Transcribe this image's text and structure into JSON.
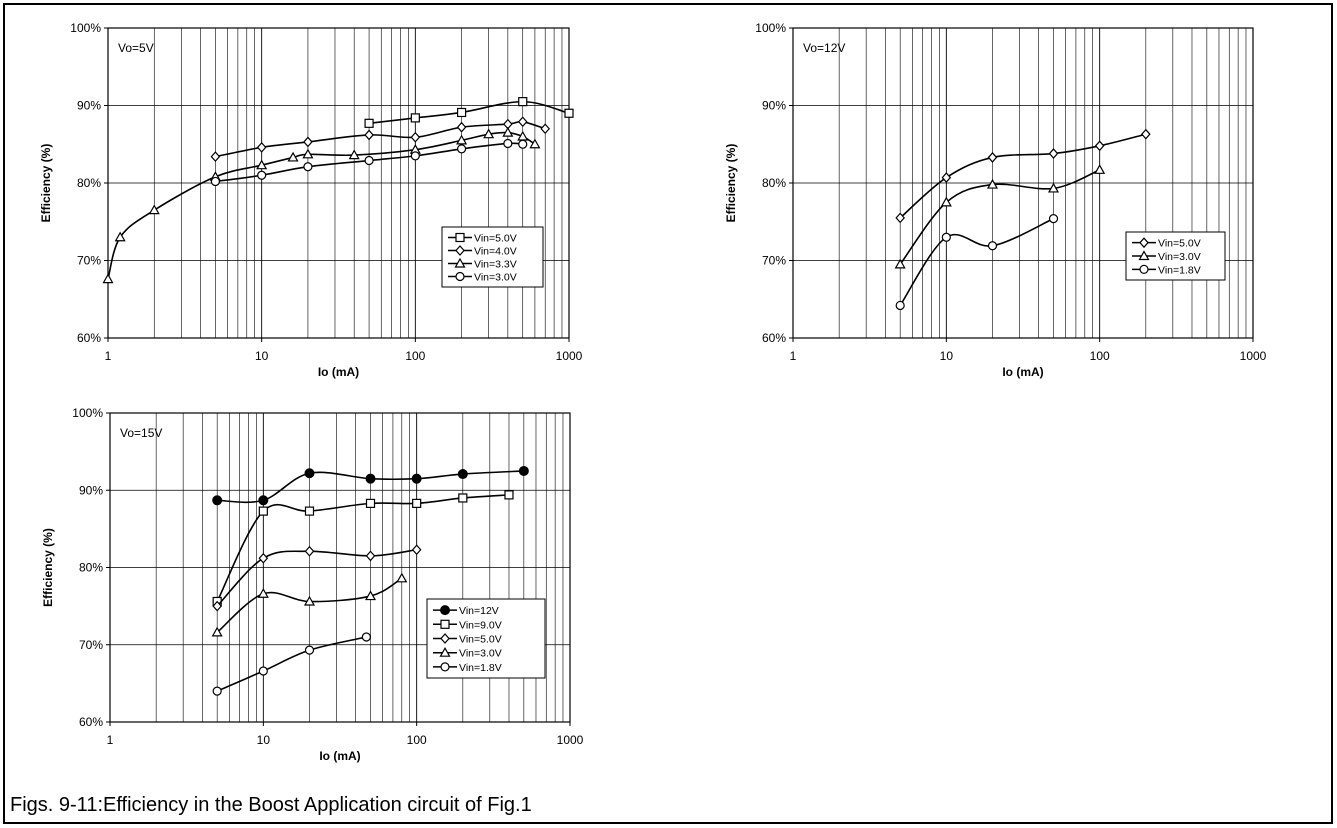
{
  "caption": "Figs. 9-11:Efficiency in the Boost Application circuit of Fig.1",
  "chart_data": [
    {
      "type": "line",
      "annotation": "Vo=5V",
      "xlabel": "Io (mA)",
      "ylabel": "Efficiency (%)",
      "xscale": "log",
      "xlim": [
        1,
        1000
      ],
      "ylim": [
        60,
        100
      ],
      "xticks": [
        "1",
        "10",
        "100",
        "1000"
      ],
      "yticks": [
        "60%",
        "70%",
        "80%",
        "90%",
        "100%"
      ],
      "grid": true,
      "legend": "right",
      "series": [
        {
          "name": "Vin=5.0V",
          "marker": "square",
          "points": [
            [
              50,
              87.7
            ],
            [
              100,
              88.4
            ],
            [
              200,
              89.1
            ],
            [
              500,
              90.5
            ],
            [
              1000,
              89.0
            ]
          ]
        },
        {
          "name": "Vin=4.0V",
          "marker": "diamond",
          "points": [
            [
              5,
              83.4
            ],
            [
              10,
              84.6
            ],
            [
              20,
              85.3
            ],
            [
              50,
              86.2
            ],
            [
              100,
              85.9
            ],
            [
              200,
              87.2
            ],
            [
              400,
              87.6
            ],
            [
              500,
              87.9
            ],
            [
              700,
              87.0
            ]
          ]
        },
        {
          "name": "Vin=3.3V",
          "marker": "triangle",
          "points": [
            [
              1,
              67.6
            ],
            [
              1.2,
              73.0
            ],
            [
              2,
              76.5
            ],
            [
              5,
              80.8
            ],
            [
              10,
              82.3
            ],
            [
              16,
              83.3
            ],
            [
              20,
              83.7
            ],
            [
              40,
              83.6
            ],
            [
              100,
              84.3
            ],
            [
              200,
              85.5
            ],
            [
              300,
              86.3
            ],
            [
              400,
              86.5
            ],
            [
              500,
              86.0
            ],
            [
              600,
              85.0
            ]
          ]
        },
        {
          "name": "Vin=3.0V",
          "marker": "circle",
          "points": [
            [
              5,
              80.2
            ],
            [
              10,
              81.0
            ],
            [
              20,
              82.1
            ],
            [
              50,
              82.9
            ],
            [
              100,
              83.5
            ],
            [
              200,
              84.4
            ],
            [
              400,
              85.1
            ],
            [
              500,
              85.0
            ]
          ]
        }
      ]
    },
    {
      "type": "line",
      "annotation": "Vo=12V",
      "xlabel": "Io (mA)",
      "ylabel": "Efficiency (%)",
      "xscale": "log",
      "xlim": [
        1,
        1000
      ],
      "ylim": [
        60,
        100
      ],
      "xticks": [
        "1",
        "10",
        "100",
        "1000"
      ],
      "yticks": [
        "60%",
        "70%",
        "80%",
        "90%",
        "100%"
      ],
      "grid": true,
      "legend": "right",
      "series": [
        {
          "name": "Vin=5.0V",
          "marker": "diamond",
          "points": [
            [
              5,
              75.5
            ],
            [
              10,
              80.7
            ],
            [
              20,
              83.3
            ],
            [
              50,
              83.8
            ],
            [
              100,
              84.8
            ],
            [
              200,
              86.3
            ]
          ]
        },
        {
          "name": "Vin=3.0V",
          "marker": "triangle",
          "points": [
            [
              5,
              69.5
            ],
            [
              10,
              77.5
            ],
            [
              20,
              79.8
            ],
            [
              50,
              79.3
            ],
            [
              100,
              81.7
            ]
          ]
        },
        {
          "name": "Vin=1.8V",
          "marker": "circle",
          "points": [
            [
              5,
              64.2
            ],
            [
              10,
              73.0
            ],
            [
              20,
              71.9
            ],
            [
              50,
              75.4
            ]
          ]
        }
      ]
    },
    {
      "type": "line",
      "annotation": "Vo=15V",
      "xlabel": "Io (mA)",
      "ylabel": "Efficiency (%)",
      "xscale": "log",
      "xlim": [
        1,
        1000
      ],
      "ylim": [
        60,
        100
      ],
      "xticks": [
        "1",
        "10",
        "100",
        "1000"
      ],
      "yticks": [
        "60%",
        "70%",
        "80%",
        "90%",
        "100%"
      ],
      "grid": true,
      "legend": "right",
      "series": [
        {
          "name": "Vin=12V",
          "marker": "filled-circle",
          "points": [
            [
              5,
              88.7
            ],
            [
              10,
              88.7
            ],
            [
              20,
              92.2
            ],
            [
              50,
              91.5
            ],
            [
              100,
              91.5
            ],
            [
              200,
              92.1
            ],
            [
              500,
              92.5
            ]
          ]
        },
        {
          "name": "Vin=9.0V",
          "marker": "square",
          "points": [
            [
              5,
              75.6
            ],
            [
              10,
              87.3
            ],
            [
              20,
              87.3
            ],
            [
              50,
              88.3
            ],
            [
              100,
              88.3
            ],
            [
              200,
              89.0
            ],
            [
              400,
              89.4
            ]
          ]
        },
        {
          "name": "Vin=5.0V",
          "marker": "diamond",
          "points": [
            [
              5,
              75.0
            ],
            [
              10,
              81.2
            ],
            [
              20,
              82.1
            ],
            [
              50,
              81.5
            ],
            [
              100,
              82.3
            ]
          ]
        },
        {
          "name": "Vin=3.0V",
          "marker": "triangle",
          "points": [
            [
              5,
              71.6
            ],
            [
              10,
              76.6
            ],
            [
              20,
              75.6
            ],
            [
              50,
              76.3
            ],
            [
              80,
              78.6
            ]
          ]
        },
        {
          "name": "Vin=1.8V",
          "marker": "circle",
          "points": [
            [
              5,
              64.0
            ],
            [
              10,
              66.6
            ],
            [
              20,
              69.3
            ],
            [
              47,
              71.0
            ]
          ]
        }
      ]
    }
  ]
}
